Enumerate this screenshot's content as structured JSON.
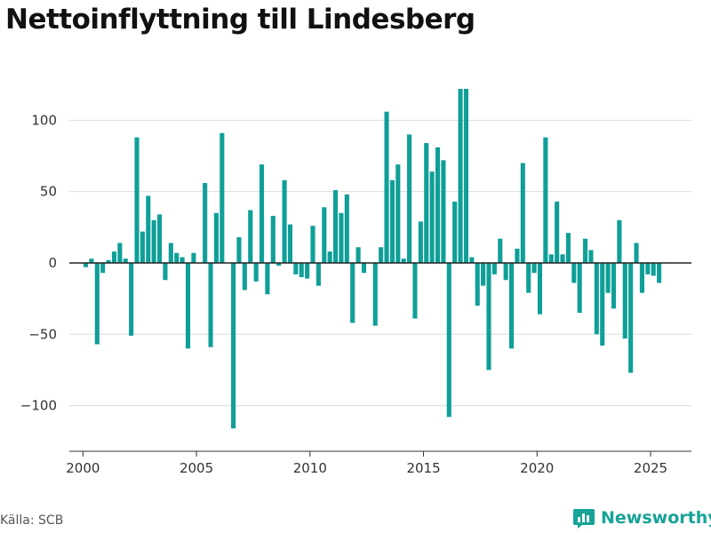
{
  "title": "Nettoinflyttning till Lindesberg",
  "source": "Källa: SCB",
  "brand": {
    "name": "Newsworthy",
    "icon": "bar-chart-logo-icon",
    "color": "#17a398"
  },
  "chart_data": {
    "type": "bar",
    "title": "Nettoinflyttning till Lindesberg",
    "xlabel": "",
    "ylabel": "",
    "bar_color": "#0f9f98",
    "xlim": [
      1999.4,
      2026.8
    ],
    "ylim": [
      -132,
      122
    ],
    "yticks": [
      100,
      50,
      0,
      -50,
      -100
    ],
    "ytick_labels": [
      "100",
      "50",
      "0",
      "−50",
      "−100"
    ],
    "xticks": [
      2000,
      2005,
      2010,
      2015,
      2020,
      2025
    ],
    "xtick_labels": [
      "2000",
      "2005",
      "2010",
      "2015",
      "2020",
      "2025"
    ],
    "grid": true,
    "legend": "none",
    "bar_width": 0.2,
    "x": [
      2000.125,
      2000.375,
      2000.625,
      2000.875,
      2001.125,
      2001.375,
      2001.625,
      2001.875,
      2002.125,
      2002.375,
      2002.625,
      2002.875,
      2003.125,
      2003.375,
      2003.625,
      2003.875,
      2004.125,
      2004.375,
      2004.625,
      2004.875,
      2005.125,
      2005.375,
      2005.625,
      2005.875,
      2006.125,
      2006.375,
      2006.625,
      2006.875,
      2007.125,
      2007.375,
      2007.625,
      2007.875,
      2008.125,
      2008.375,
      2008.625,
      2008.875,
      2009.125,
      2009.375,
      2009.625,
      2009.875,
      2010.125,
      2010.375,
      2010.625,
      2010.875,
      2011.125,
      2011.375,
      2011.625,
      2011.875,
      2012.125,
      2012.375,
      2012.625,
      2012.875,
      2013.125,
      2013.375,
      2013.625,
      2013.875,
      2014.125,
      2014.375,
      2014.625,
      2014.875,
      2015.125,
      2015.375,
      2015.625,
      2015.875,
      2016.125,
      2016.375,
      2016.625,
      2016.875,
      2017.125,
      2017.375,
      2017.625,
      2017.875,
      2018.125,
      2018.375,
      2018.625,
      2018.875,
      2019.125,
      2019.375,
      2019.625,
      2019.875,
      2020.125,
      2020.375,
      2020.625,
      2020.875,
      2021.125,
      2021.375,
      2021.625,
      2021.875,
      2022.125,
      2022.375,
      2022.625,
      2022.875,
      2023.125,
      2023.375,
      2023.625,
      2023.875,
      2024.125,
      2024.375,
      2024.625,
      2024.875,
      2025.125,
      2025.375
    ],
    "values": [
      -3,
      3,
      -57,
      -7,
      2,
      8,
      14,
      3,
      -51,
      88,
      22,
      47,
      30,
      34,
      -12,
      14,
      7,
      4,
      -60,
      7,
      0,
      56,
      -59,
      35,
      91,
      0,
      -116,
      18,
      -19,
      37,
      -13,
      69,
      -22,
      33,
      -2,
      58,
      27,
      -8,
      -10,
      -11,
      26,
      -16,
      39,
      8,
      51,
      35,
      48,
      -42,
      11,
      -7,
      0,
      -44,
      11,
      106,
      58,
      69,
      3,
      90,
      -39,
      29,
      84,
      64,
      81,
      72,
      -108,
      43,
      122,
      122,
      4,
      -30,
      -16,
      -75,
      -8,
      17,
      -12,
      -60,
      10,
      70,
      -21,
      -7,
      -36,
      88,
      6,
      43,
      6,
      21,
      -14,
      -35,
      17,
      9,
      -50,
      -58,
      -21,
      -32,
      30,
      -53,
      -77,
      14,
      -21,
      -8,
      -9,
      -14
    ]
  }
}
